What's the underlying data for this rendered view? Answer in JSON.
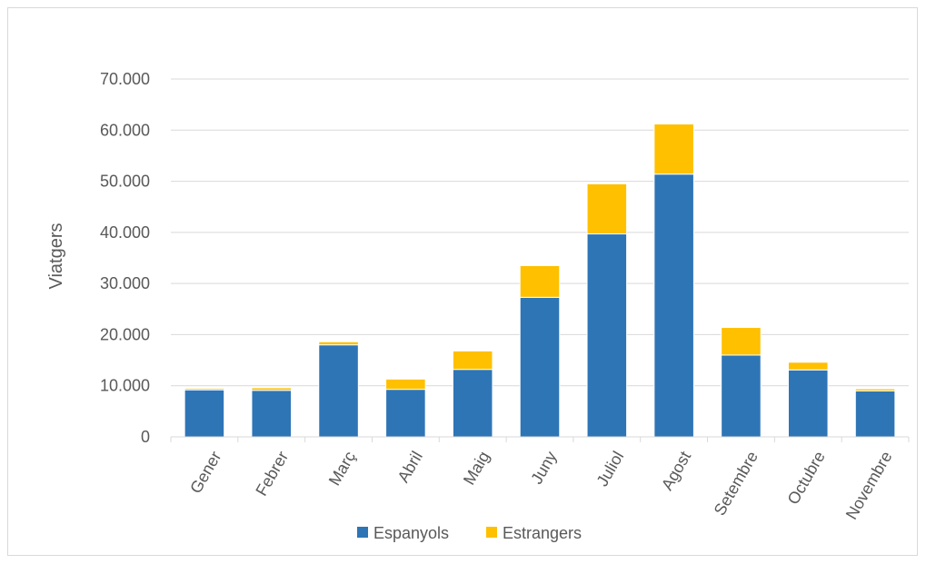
{
  "chart_data": {
    "type": "bar",
    "stacked": true,
    "title": "",
    "xlabel": "",
    "ylabel": "Viatgers",
    "ylim": [
      0,
      70000
    ],
    "yticks": [
      0,
      10000,
      20000,
      30000,
      40000,
      50000,
      60000,
      70000
    ],
    "ytick_labels": [
      "0",
      "10.000",
      "20.000",
      "30.000",
      "40.000",
      "50.000",
      "60.000",
      "70.000"
    ],
    "grid": true,
    "legend_position": "bottom",
    "categories": [
      "Gener",
      "Febrer",
      "Març",
      "Abril",
      "Maig",
      "Juny",
      "Juliol",
      "Agost",
      "Setembre",
      "Octubre",
      "Novembre"
    ],
    "series": [
      {
        "name": "Espanyols",
        "color": "#2e75b6",
        "values": [
          9200,
          9100,
          18000,
          9300,
          13200,
          27300,
          39700,
          51400,
          16000,
          13100,
          9000
        ]
      },
      {
        "name": "Estrangers",
        "color": "#ffc000",
        "values": [
          300,
          500,
          600,
          2000,
          3600,
          6200,
          9800,
          9800,
          5400,
          1500,
          400
        ]
      }
    ]
  }
}
